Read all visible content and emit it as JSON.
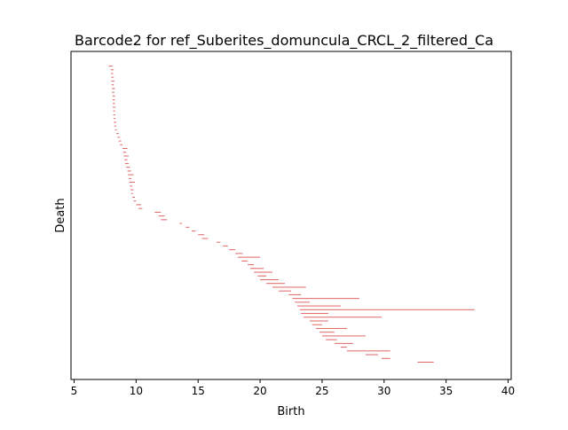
{
  "chart_data": {
    "type": "barcode",
    "title": "Barcode2 for ref_Suberites_domuncula_CRCL_2_filtered_Ca",
    "xlabel": "Birth",
    "ylabel": "Death",
    "xlim": [
      4.75,
      40.25
    ],
    "x_ticks": [
      5,
      10,
      15,
      20,
      25,
      30,
      35,
      40
    ],
    "x_tick_labels": [
      "5",
      "10",
      "15",
      "20",
      "25",
      "30",
      "35",
      "40"
    ],
    "y_ticks_shown": false,
    "grid": false,
    "color": "#e06666",
    "intervals": [
      {
        "birth": 7.8,
        "death": 8.1
      },
      {
        "birth": 7.95,
        "death": 8.2
      },
      {
        "birth": 7.97,
        "death": 8.15
      },
      {
        "birth": 8.0,
        "death": 8.2
      },
      {
        "birth": 8.0,
        "death": 8.25
      },
      {
        "birth": 8.02,
        "death": 8.2
      },
      {
        "birth": 8.05,
        "death": 8.3
      },
      {
        "birth": 8.05,
        "death": 8.25
      },
      {
        "birth": 8.1,
        "death": 8.3
      },
      {
        "birth": 8.1,
        "death": 8.28
      },
      {
        "birth": 8.12,
        "death": 8.3
      },
      {
        "birth": 8.12,
        "death": 8.35
      },
      {
        "birth": 8.15,
        "death": 8.3
      },
      {
        "birth": 8.15,
        "death": 8.32
      },
      {
        "birth": 8.2,
        "death": 8.35
      },
      {
        "birth": 8.2,
        "death": 8.4
      },
      {
        "birth": 8.25,
        "death": 8.4
      },
      {
        "birth": 8.3,
        "death": 8.45
      },
      {
        "birth": 8.4,
        "death": 8.6
      },
      {
        "birth": 8.5,
        "death": 8.7
      },
      {
        "birth": 8.6,
        "death": 8.8
      },
      {
        "birth": 8.7,
        "death": 8.9
      },
      {
        "birth": 8.9,
        "death": 9.3
      },
      {
        "birth": 8.95,
        "death": 9.2
      },
      {
        "birth": 9.0,
        "death": 9.4
      },
      {
        "birth": 9.05,
        "death": 9.3
      },
      {
        "birth": 9.1,
        "death": 9.4
      },
      {
        "birth": 9.2,
        "death": 9.5
      },
      {
        "birth": 9.3,
        "death": 9.6
      },
      {
        "birth": 9.35,
        "death": 9.8
      },
      {
        "birth": 9.4,
        "death": 9.6
      },
      {
        "birth": 9.45,
        "death": 9.9
      },
      {
        "birth": 9.5,
        "death": 9.7
      },
      {
        "birth": 9.55,
        "death": 9.8
      },
      {
        "birth": 9.6,
        "death": 9.75
      },
      {
        "birth": 9.7,
        "death": 9.9
      },
      {
        "birth": 9.8,
        "death": 10.0
      },
      {
        "birth": 10.0,
        "death": 10.4
      },
      {
        "birth": 10.2,
        "death": 10.5
      },
      {
        "birth": 11.5,
        "death": 12.0
      },
      {
        "birth": 11.8,
        "death": 12.3
      },
      {
        "birth": 12.0,
        "death": 12.5
      },
      {
        "birth": 13.5,
        "death": 13.7
      },
      {
        "birth": 14.0,
        "death": 14.3
      },
      {
        "birth": 14.5,
        "death": 14.8
      },
      {
        "birth": 15.0,
        "death": 15.5
      },
      {
        "birth": 15.3,
        "death": 15.8
      },
      {
        "birth": 16.5,
        "death": 16.8
      },
      {
        "birth": 17.0,
        "death": 17.4
      },
      {
        "birth": 17.5,
        "death": 18.0
      },
      {
        "birth": 18.0,
        "death": 18.6
      },
      {
        "birth": 18.2,
        "death": 20.0
      },
      {
        "birth": 18.5,
        "death": 19.0
      },
      {
        "birth": 19.0,
        "death": 19.5
      },
      {
        "birth": 19.2,
        "death": 20.3
      },
      {
        "birth": 19.5,
        "death": 21.0
      },
      {
        "birth": 19.8,
        "death": 20.5
      },
      {
        "birth": 20.0,
        "death": 21.5
      },
      {
        "birth": 20.5,
        "death": 22.0
      },
      {
        "birth": 21.0,
        "death": 23.7
      },
      {
        "birth": 21.5,
        "death": 22.5
      },
      {
        "birth": 22.3,
        "death": 23.3
      },
      {
        "birth": 22.6,
        "death": 28.0
      },
      {
        "birth": 22.8,
        "death": 24.0
      },
      {
        "birth": 23.0,
        "death": 26.5
      },
      {
        "birth": 23.2,
        "death": 37.3
      },
      {
        "birth": 23.3,
        "death": 25.5
      },
      {
        "birth": 23.5,
        "death": 29.8
      },
      {
        "birth": 24.0,
        "death": 25.5
      },
      {
        "birth": 24.2,
        "death": 25.0
      },
      {
        "birth": 24.5,
        "death": 27.0
      },
      {
        "birth": 24.8,
        "death": 26.0
      },
      {
        "birth": 25.0,
        "death": 28.5
      },
      {
        "birth": 25.3,
        "death": 26.2
      },
      {
        "birth": 26.0,
        "death": 27.5
      },
      {
        "birth": 26.5,
        "death": 27.0
      },
      {
        "birth": 27.0,
        "death": 30.5
      },
      {
        "birth": 28.5,
        "death": 29.5
      },
      {
        "birth": 29.8,
        "death": 30.5
      },
      {
        "birth": 32.7,
        "death": 34.0
      }
    ]
  }
}
